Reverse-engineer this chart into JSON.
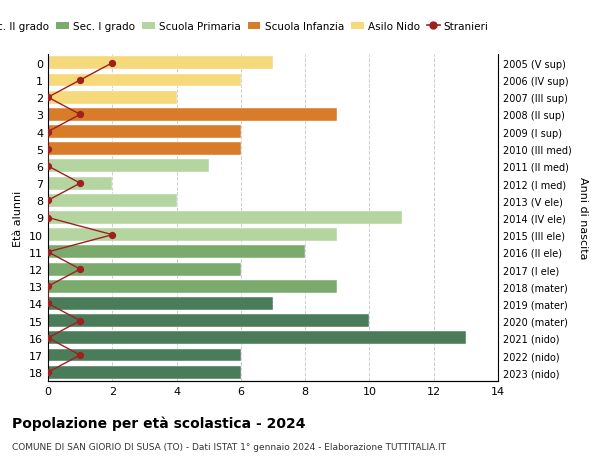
{
  "ages": [
    18,
    17,
    16,
    15,
    14,
    13,
    12,
    11,
    10,
    9,
    8,
    7,
    6,
    5,
    4,
    3,
    2,
    1,
    0
  ],
  "right_labels": [
    "2005 (V sup)",
    "2006 (IV sup)",
    "2007 (III sup)",
    "2008 (II sup)",
    "2009 (I sup)",
    "2010 (III med)",
    "2011 (II med)",
    "2012 (I med)",
    "2013 (V ele)",
    "2014 (IV ele)",
    "2015 (III ele)",
    "2016 (II ele)",
    "2017 (I ele)",
    "2018 (mater)",
    "2019 (mater)",
    "2020 (mater)",
    "2021 (nido)",
    "2022 (nido)",
    "2023 (nido)"
  ],
  "bar_values": [
    6,
    6,
    13,
    10,
    7,
    9,
    6,
    8,
    9,
    11,
    4,
    2,
    5,
    6,
    6,
    9,
    4,
    6,
    7
  ],
  "bar_colors": [
    "#4a7c59",
    "#4a7c59",
    "#4a7c59",
    "#4a7c59",
    "#4a7c59",
    "#7aab6c",
    "#7aab6c",
    "#7aab6c",
    "#b5d5a0",
    "#b5d5a0",
    "#b5d5a0",
    "#b5d5a0",
    "#b5d5a0",
    "#d97c2a",
    "#d97c2a",
    "#d97c2a",
    "#f5d97a",
    "#f5d97a",
    "#f5d97a"
  ],
  "stranieri_values": [
    0,
    1,
    0,
    1,
    0,
    0,
    1,
    0,
    2,
    0,
    0,
    1,
    0,
    0,
    0,
    1,
    0,
    1,
    2
  ],
  "title": "Popolazione per età scolastica - 2024",
  "subtitle": "COMUNE DI SAN GIORIO DI SUSA (TO) - Dati ISTAT 1° gennaio 2024 - Elaborazione TUTTITALIA.IT",
  "ylabel_left": "Età alunni",
  "ylabel_right": "Anni di nascita",
  "xlim": [
    0,
    14
  ],
  "xticks": [
    0,
    2,
    4,
    6,
    8,
    10,
    12,
    14
  ],
  "legend_labels": [
    "Sec. II grado",
    "Sec. I grado",
    "Scuola Primaria",
    "Scuola Infanzia",
    "Asilo Nido",
    "Stranieri"
  ],
  "legend_colors": [
    "#4a7c59",
    "#7aab6c",
    "#b5d5a0",
    "#d97c2a",
    "#f5d97a",
    "#a02020"
  ],
  "bg_color": "#ffffff",
  "grid_color": "#cccccc",
  "bar_height": 0.75
}
